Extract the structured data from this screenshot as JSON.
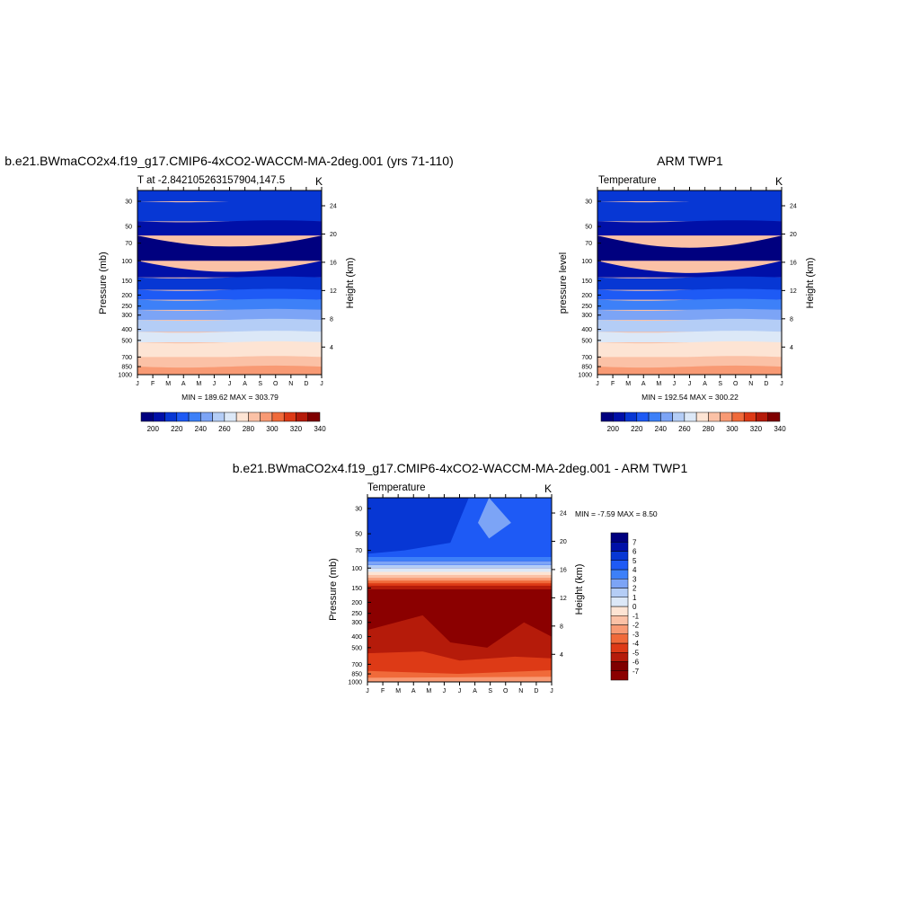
{
  "months": [
    "J",
    "F",
    "M",
    "A",
    "M",
    "J",
    "J",
    "A",
    "S",
    "O",
    "N",
    "D",
    "J"
  ],
  "pressure_ticks": [
    "30",
    "50",
    "70",
    "100",
    "150",
    "200",
    "250",
    "300",
    "400",
    "500",
    "700",
    "850",
    "1000"
  ],
  "height_ticks": [
    "24",
    "20",
    "16",
    "12",
    "8",
    "4"
  ],
  "panel1": {
    "title": "b.e21.BWmaCO2x4.f19_g17.CMIP6-4xCO2-WACCM-MA-2deg.001 (yrs 71-110)",
    "left_label": "T at -2.842105263157904,147.5",
    "right_label": "K",
    "ylabel": "Pressure (mb)",
    "ylabel_right": "Height (km)",
    "stats": "MIN = 189.62 MAX = 303.79"
  },
  "panel2": {
    "title": "ARM TWP1",
    "left_label": "Temperature",
    "right_label": "K",
    "ylabel": "pressure level",
    "ylabel_right": "Height (km)",
    "stats": "MIN = 192.54 MAX = 300.22"
  },
  "panel3": {
    "title": "b.e21.BWmaCO2x4.f19_g17.CMIP6-4xCO2-WACCM-MA-2deg.001 - ARM TWP1",
    "left_label": "Temperature",
    "right_label": "K",
    "ylabel": "Pressure (mb)",
    "ylabel_right": "Height (km)",
    "stats": "MIN =  -7.59 MAX =   8.50"
  },
  "colorbar_temp": {
    "colors": [
      "#00007f",
      "#0010a8",
      "#0737d4",
      "#1e5af5",
      "#3d80f8",
      "#7ca4f6",
      "#b4cdf6",
      "#dce8f7",
      "#fde4d4",
      "#fbc1a6",
      "#f89a74",
      "#f06a3a",
      "#dd3a16",
      "#b51b0a",
      "#7f0000"
    ],
    "labels": [
      "200",
      "220",
      "240",
      "260",
      "280",
      "300",
      "320",
      "340"
    ]
  },
  "colorbar_diff": {
    "colors": [
      "#00007f",
      "#0010a8",
      "#0737d4",
      "#1e5af5",
      "#3d80f8",
      "#7ca4f6",
      "#b4cdf6",
      "#dce8f7",
      "#fde4d4",
      "#fbc1a6",
      "#f89a74",
      "#f06a3a",
      "#dd3a16",
      "#b51b0a",
      "#7f0000",
      "#8b0000"
    ],
    "labels": [
      "7",
      "6",
      "5",
      "4",
      "3",
      "2",
      "1",
      "0",
      "-1",
      "-2",
      "-3",
      "-4",
      "-5",
      "-6",
      "-7"
    ]
  },
  "chart_data": [
    {
      "type": "heatmap",
      "title": "b.e21.BWmaCO2x4.f19_g17.CMIP6-4xCO2-WACCM-MA-2deg.001 (yrs 71-110)",
      "xlabel": "",
      "ylabel": "Pressure (mb)",
      "y2label": "Height (km)",
      "x": [
        "J",
        "F",
        "M",
        "A",
        "M",
        "J",
        "J",
        "A",
        "S",
        "O",
        "N",
        "D",
        "J"
      ],
      "y": [
        30,
        50,
        70,
        100,
        150,
        200,
        250,
        300,
        400,
        500,
        700,
        850,
        1000
      ],
      "y2": [
        24,
        20,
        16,
        12,
        8,
        4
      ],
      "min": 189.62,
      "max": 303.79,
      "colorbar_ticks": [
        200,
        220,
        240,
        260,
        280,
        300,
        320,
        340
      ]
    },
    {
      "type": "heatmap",
      "title": "ARM TWP1",
      "xlabel": "",
      "ylabel": "pressure level",
      "y2label": "Height (km)",
      "x": [
        "J",
        "F",
        "M",
        "A",
        "M",
        "J",
        "J",
        "A",
        "S",
        "O",
        "N",
        "D",
        "J"
      ],
      "y": [
        30,
        50,
        70,
        100,
        150,
        200,
        250,
        300,
        400,
        500,
        700,
        850,
        1000
      ],
      "y2": [
        24,
        20,
        16,
        12,
        8,
        4
      ],
      "min": 192.54,
      "max": 300.22,
      "colorbar_ticks": [
        200,
        220,
        240,
        260,
        280,
        300,
        320,
        340
      ]
    },
    {
      "type": "heatmap",
      "title": "b.e21.BWmaCO2x4.f19_g17.CMIP6-4xCO2-WACCM-MA-2deg.001 - ARM TWP1",
      "xlabel": "",
      "ylabel": "Pressure (mb)",
      "y2label": "Height (km)",
      "x": [
        "J",
        "F",
        "M",
        "A",
        "M",
        "J",
        "J",
        "A",
        "S",
        "O",
        "N",
        "D",
        "J"
      ],
      "y": [
        30,
        50,
        70,
        100,
        150,
        200,
        250,
        300,
        400,
        500,
        700,
        850,
        1000
      ],
      "y2": [
        24,
        20,
        16,
        12,
        8,
        4
      ],
      "min": -7.59,
      "max": 8.5,
      "colorbar_ticks": [
        7,
        6,
        5,
        4,
        3,
        2,
        1,
        0,
        -1,
        -2,
        -3,
        -4,
        -5,
        -6,
        -7
      ]
    }
  ]
}
